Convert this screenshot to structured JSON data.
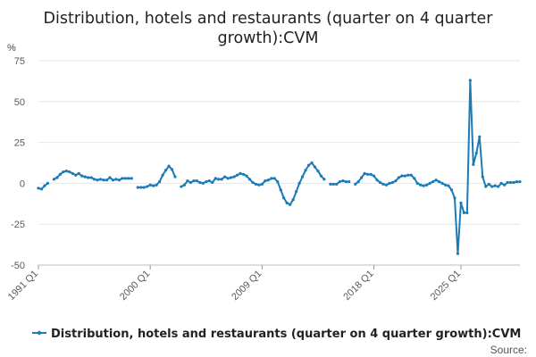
{
  "chart_data": {
    "type": "line",
    "title_line1": "Distribution, hotels and restaurants (quarter on 4 quarter",
    "title_line2": "growth):CVM",
    "unit_label": "%",
    "ylim": [
      -50,
      75
    ],
    "yticks": [
      75,
      50,
      25,
      0,
      -25,
      -50
    ],
    "grid": "horizontal",
    "x_tick_labels": [
      "1991 Q1",
      "2000 Q1",
      "2009 Q1",
      "2018 Q1",
      "2025 Q1"
    ],
    "x_tick_index": [
      0,
      36,
      72,
      108,
      136
    ],
    "legend_position": "bottom",
    "source_label": "Source:",
    "series": [
      {
        "name": "Distribution, hotels and restaurants (quarter on 4 quarter growth):CVM",
        "color": "#1a7bb9",
        "start": "1991 Q1",
        "values": [
          -3,
          -3.5,
          -1.5,
          0,
          null,
          2.5,
          3.5,
          5.5,
          7,
          7.5,
          7,
          6,
          5,
          6,
          4.5,
          4,
          3.5,
          3.5,
          2.5,
          2,
          2.5,
          2,
          2,
          3.5,
          2,
          2.5,
          2,
          3,
          3,
          3,
          3,
          null,
          -2.5,
          -2.5,
          -2.5,
          -2,
          -1,
          -1.5,
          -1,
          1,
          5,
          8,
          10.5,
          8.5,
          4,
          null,
          -2,
          -1,
          1.5,
          0.5,
          1.5,
          1.5,
          0.5,
          0,
          1,
          1.5,
          0.5,
          3,
          2.5,
          2.5,
          4,
          3,
          3.5,
          4,
          5,
          6,
          5.5,
          4.5,
          2.5,
          0.5,
          -0.5,
          -1,
          -0.5,
          1.5,
          2,
          3,
          3,
          1,
          -4,
          -9,
          -12,
          -13,
          -10,
          -5,
          0,
          4,
          8,
          11,
          12.5,
          10,
          7.5,
          4.5,
          2.5,
          null,
          -0.5,
          -0.5,
          -0.5,
          1,
          1.5,
          1,
          1,
          null,
          -0.5,
          1,
          3.5,
          6,
          5.5,
          5.5,
          4.5,
          2,
          0.5,
          -0.5,
          -1,
          0,
          0.5,
          1.5,
          3.5,
          4.5,
          4.5,
          5,
          5,
          3,
          0,
          -1,
          -1.5,
          -1,
          0,
          1,
          2,
          1,
          0,
          -1,
          -1.5,
          -4,
          -9,
          -43,
          -12,
          -18,
          -18,
          63,
          11.5,
          18.5,
          28.5,
          4,
          -2,
          -0.5,
          -2,
          -1.5,
          -2,
          0,
          -1,
          0.5,
          0.5,
          0.5,
          1,
          1
        ]
      }
    ]
  }
}
